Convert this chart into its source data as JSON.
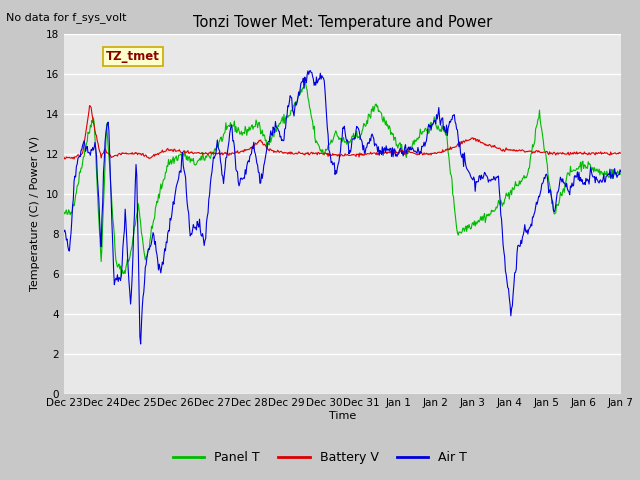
{
  "title": "Tonzi Tower Met: Temperature and Power",
  "ylabel": "Temperature (C) / Power (V)",
  "xlabel": "Time",
  "no_data_text": "No data for f_sys_volt",
  "annotation_text": "TZ_tmet",
  "ylim": [
    0,
    18
  ],
  "yticks": [
    0,
    2,
    4,
    6,
    8,
    10,
    12,
    14,
    16,
    18
  ],
  "fig_bg_color": "#c8c8c8",
  "plot_bg_color": "#e8e8e8",
  "green_color": "#00bb00",
  "red_color": "#dd0000",
  "blue_color": "#0000dd",
  "legend_labels": [
    "Panel T",
    "Battery V",
    "Air T"
  ],
  "legend_colors": [
    "#00bb00",
    "#dd0000",
    "#0000dd"
  ],
  "tick_labels": [
    "Dec 23",
    "Dec 24",
    "Dec 25",
    "Dec 26",
    "Dec 27",
    "Dec 28",
    "Dec 29",
    "Dec 30",
    "Dec 31",
    "Jan 1",
    "Jan 2",
    "Jan 3",
    "Jan 4",
    "Jan 5",
    "Jan 6",
    "Jan 7"
  ]
}
